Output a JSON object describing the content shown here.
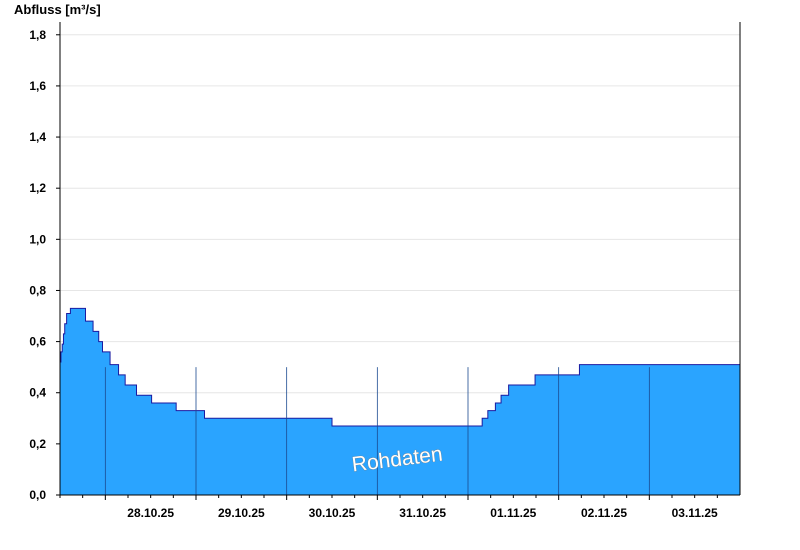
{
  "chart_data": {
    "type": "area",
    "ylabel": "Abfluss [m³/s]",
    "ylim": [
      0,
      1.85
    ],
    "yticks": [
      {
        "value": 0.0,
        "label": "0,0"
      },
      {
        "value": 0.2,
        "label": "0,2"
      },
      {
        "value": 0.4,
        "label": "0,4"
      },
      {
        "value": 0.6,
        "label": "0,6"
      },
      {
        "value": 0.8,
        "label": "0,8"
      },
      {
        "value": 1.0,
        "label": "1,0"
      },
      {
        "value": 1.2,
        "label": "1,2"
      },
      {
        "value": 1.4,
        "label": "1,4"
      },
      {
        "value": 1.6,
        "label": "1,6"
      },
      {
        "value": 1.8,
        "label": "1,8"
      }
    ],
    "xlim": [
      "27.10.25 12:00",
      "04.11.25 00:00"
    ],
    "xticks": [
      "28.10.25",
      "29.10.25",
      "30.10.25",
      "31.10.25",
      "01.11.25",
      "02.11.25",
      "03.11.25"
    ],
    "grid": true,
    "annotation": "Rohdaten",
    "colors": {
      "fill": "#2aa4ff",
      "line": "#1a1aa0",
      "grid": "#e6e6e6",
      "axis": "#000000",
      "daysep": "#1a4a90"
    },
    "series": [
      {
        "step": true,
        "x": [
          "27.10.25 12:00",
          "27.10.25 12:15",
          "27.10.25 12:35",
          "27.10.25 12:55",
          "27.10.25 13:15",
          "27.10.25 13:45",
          "27.10.25 14:45",
          "27.10.25 18:45",
          "27.10.25 20:45",
          "27.10.25 22:15",
          "27.10.25 23:15",
          "28.10.25 01:15",
          "28.10.25 03:30",
          "28.10.25 05:15",
          "28.10.25 08:15",
          "28.10.25 12:15",
          "28.10.25 18:45",
          "29.10.25 02:15",
          "29.10.25 05:30",
          "29.10.25 23:15",
          "30.10.25 12:00",
          "30.10.25 12:30",
          "31.10.25 23:30",
          "01.11.25 00:00",
          "01.11.25 02:15",
          "01.11.25 03:45",
          "01.11.25 05:15",
          "01.11.25 07:15",
          "01.11.25 08:45",
          "01.11.25 10:45",
          "01.11.25 12:45",
          "01.11.25 17:45",
          "02.11.25 00:00",
          "02.11.25 02:00",
          "02.11.25 05:30",
          "02.11.25 08:00",
          "02.11.25 10:00",
          "02.11.25 14:00",
          "02.11.25 16:30",
          "03.11.25 12:15",
          "04.11.25 00:00"
        ],
        "y": [
          0.52,
          0.56,
          0.59,
          0.63,
          0.67,
          0.71,
          0.73,
          0.68,
          0.64,
          0.6,
          0.56,
          0.51,
          0.47,
          0.43,
          0.39,
          0.36,
          0.33,
          0.3,
          0.3,
          0.3,
          0.27,
          0.27,
          0.27,
          0.27,
          0.27,
          0.3,
          0.33,
          0.36,
          0.39,
          0.43,
          0.43,
          0.47,
          0.47,
          0.47,
          0.51,
          0.51,
          0.51,
          0.51,
          0.51,
          0.51,
          0.51
        ]
      }
    ]
  }
}
